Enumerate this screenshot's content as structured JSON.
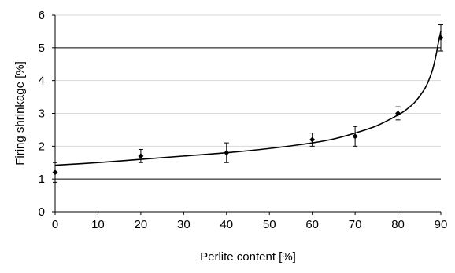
{
  "chart_data": {
    "type": "scatter",
    "title": "",
    "xlabel": "Perlite content [%]",
    "ylabel": "Firing shrinkage [%]",
    "xlim": [
      0,
      90
    ],
    "ylim": [
      0,
      6
    ],
    "x_ticks": [
      0,
      10,
      20,
      30,
      40,
      50,
      60,
      70,
      80,
      90
    ],
    "y_ticks": [
      0,
      1,
      2,
      3,
      4,
      5,
      6
    ],
    "x_tick_labels": [
      "0",
      "10",
      "20",
      "30",
      "40",
      "50",
      "60",
      "70",
      "80",
      "90"
    ],
    "y_tick_labels": [
      "0",
      "1",
      "2",
      "3",
      "4",
      "5",
      "6"
    ],
    "grid": "horizontal",
    "legend": "none",
    "series": [
      {
        "marker": "diamond",
        "x": [
          0,
          20,
          40,
          60,
          70,
          80,
          90
        ],
        "y": [
          1.2,
          1.7,
          1.8,
          2.2,
          2.3,
          3.0,
          5.3
        ],
        "error": [
          0.3,
          0.2,
          0.3,
          0.2,
          0.3,
          0.2,
          0.4
        ]
      }
    ],
    "fit_curve": {
      "type": "smooth",
      "x": [
        0,
        10,
        20,
        30,
        40,
        50,
        60,
        65,
        70,
        75,
        80,
        82,
        84,
        86,
        87,
        88,
        88.5,
        89,
        89.5,
        90
      ],
      "y": [
        1.42,
        1.5,
        1.6,
        1.7,
        1.8,
        1.93,
        2.1,
        2.22,
        2.4,
        2.62,
        2.95,
        3.12,
        3.35,
        3.7,
        3.95,
        4.3,
        4.55,
        4.85,
        5.2,
        5.5
      ]
    },
    "reference_lines": [
      1,
      5
    ]
  }
}
